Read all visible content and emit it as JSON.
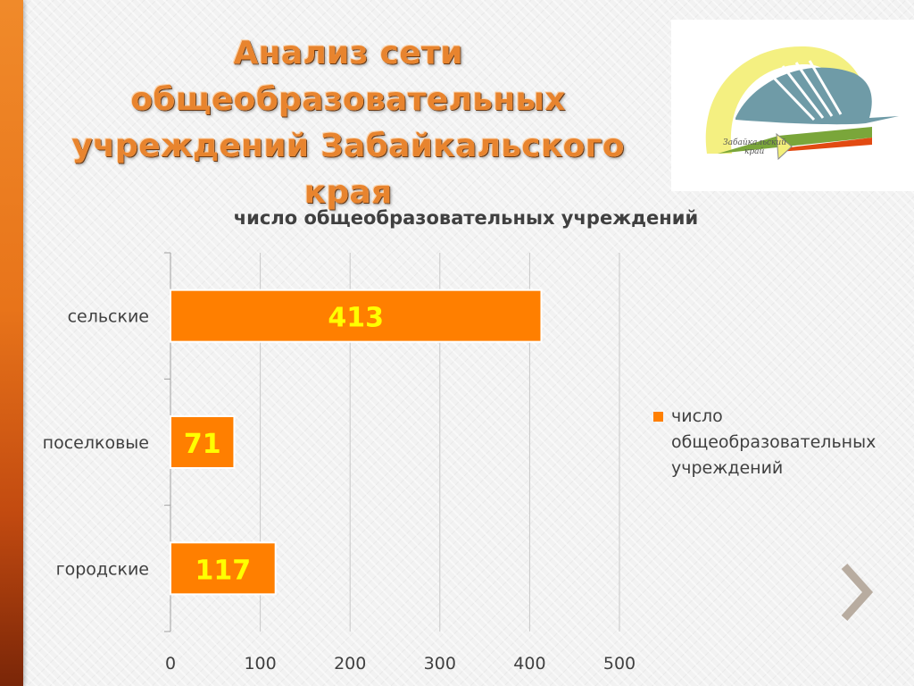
{
  "slide": {
    "title_line1": "Анализ сети общеобразовательных",
    "title_line2": "учреждений Забайкальского края",
    "logo_text_line1": "Забайкальский",
    "logo_text_line2": "край"
  },
  "colors": {
    "bar": "#ff7f00",
    "label": "#ffff00",
    "title": "#e8842e",
    "accent_strip": "#e8741a"
  },
  "chart_data": {
    "type": "bar",
    "orientation": "horizontal",
    "title": "число общеобразовательных учреждений",
    "categories": [
      "сельские",
      "поселковые",
      "городские"
    ],
    "series": [
      {
        "name": "число общеобразовательных учреждений",
        "values": [
          413,
          71,
          117
        ]
      }
    ],
    "xlim": [
      0,
      500
    ],
    "xticks": [
      0,
      100,
      200,
      300,
      400,
      500
    ],
    "grid": true,
    "legend": "right",
    "data_labels": true
  },
  "legend": {
    "line1": "число",
    "line2": "общеобразовательных",
    "line3": "учреждений"
  }
}
